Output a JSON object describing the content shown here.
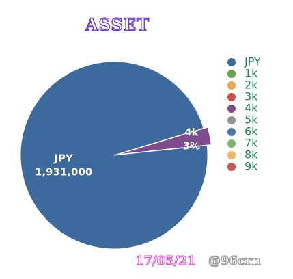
{
  "chart_data": {
    "type": "pie",
    "title": "ASSET",
    "categories": [
      "JPY",
      "1k",
      "2k",
      "3k",
      "4k",
      "5k",
      "6k",
      "7k",
      "8k",
      "9k"
    ],
    "values": [
      1931000,
      0,
      0,
      0,
      60000,
      0,
      0,
      0,
      0,
      0
    ],
    "value_labels": [
      "1,931,000",
      null,
      null,
      null,
      "3%",
      null,
      null,
      null,
      null,
      null
    ],
    "colors": [
      "#3d6a9d",
      "#67a54f",
      "#eea94c",
      "#d24d45",
      "#7d4b8e",
      "#949494",
      "#4a76ab",
      "#7db46a",
      "#f0b85e",
      "#cf5753"
    ],
    "exploded": [
      "4k"
    ],
    "legend": "right"
  },
  "footer": {
    "date": "17/05/21",
    "watermark": "@96crn"
  }
}
